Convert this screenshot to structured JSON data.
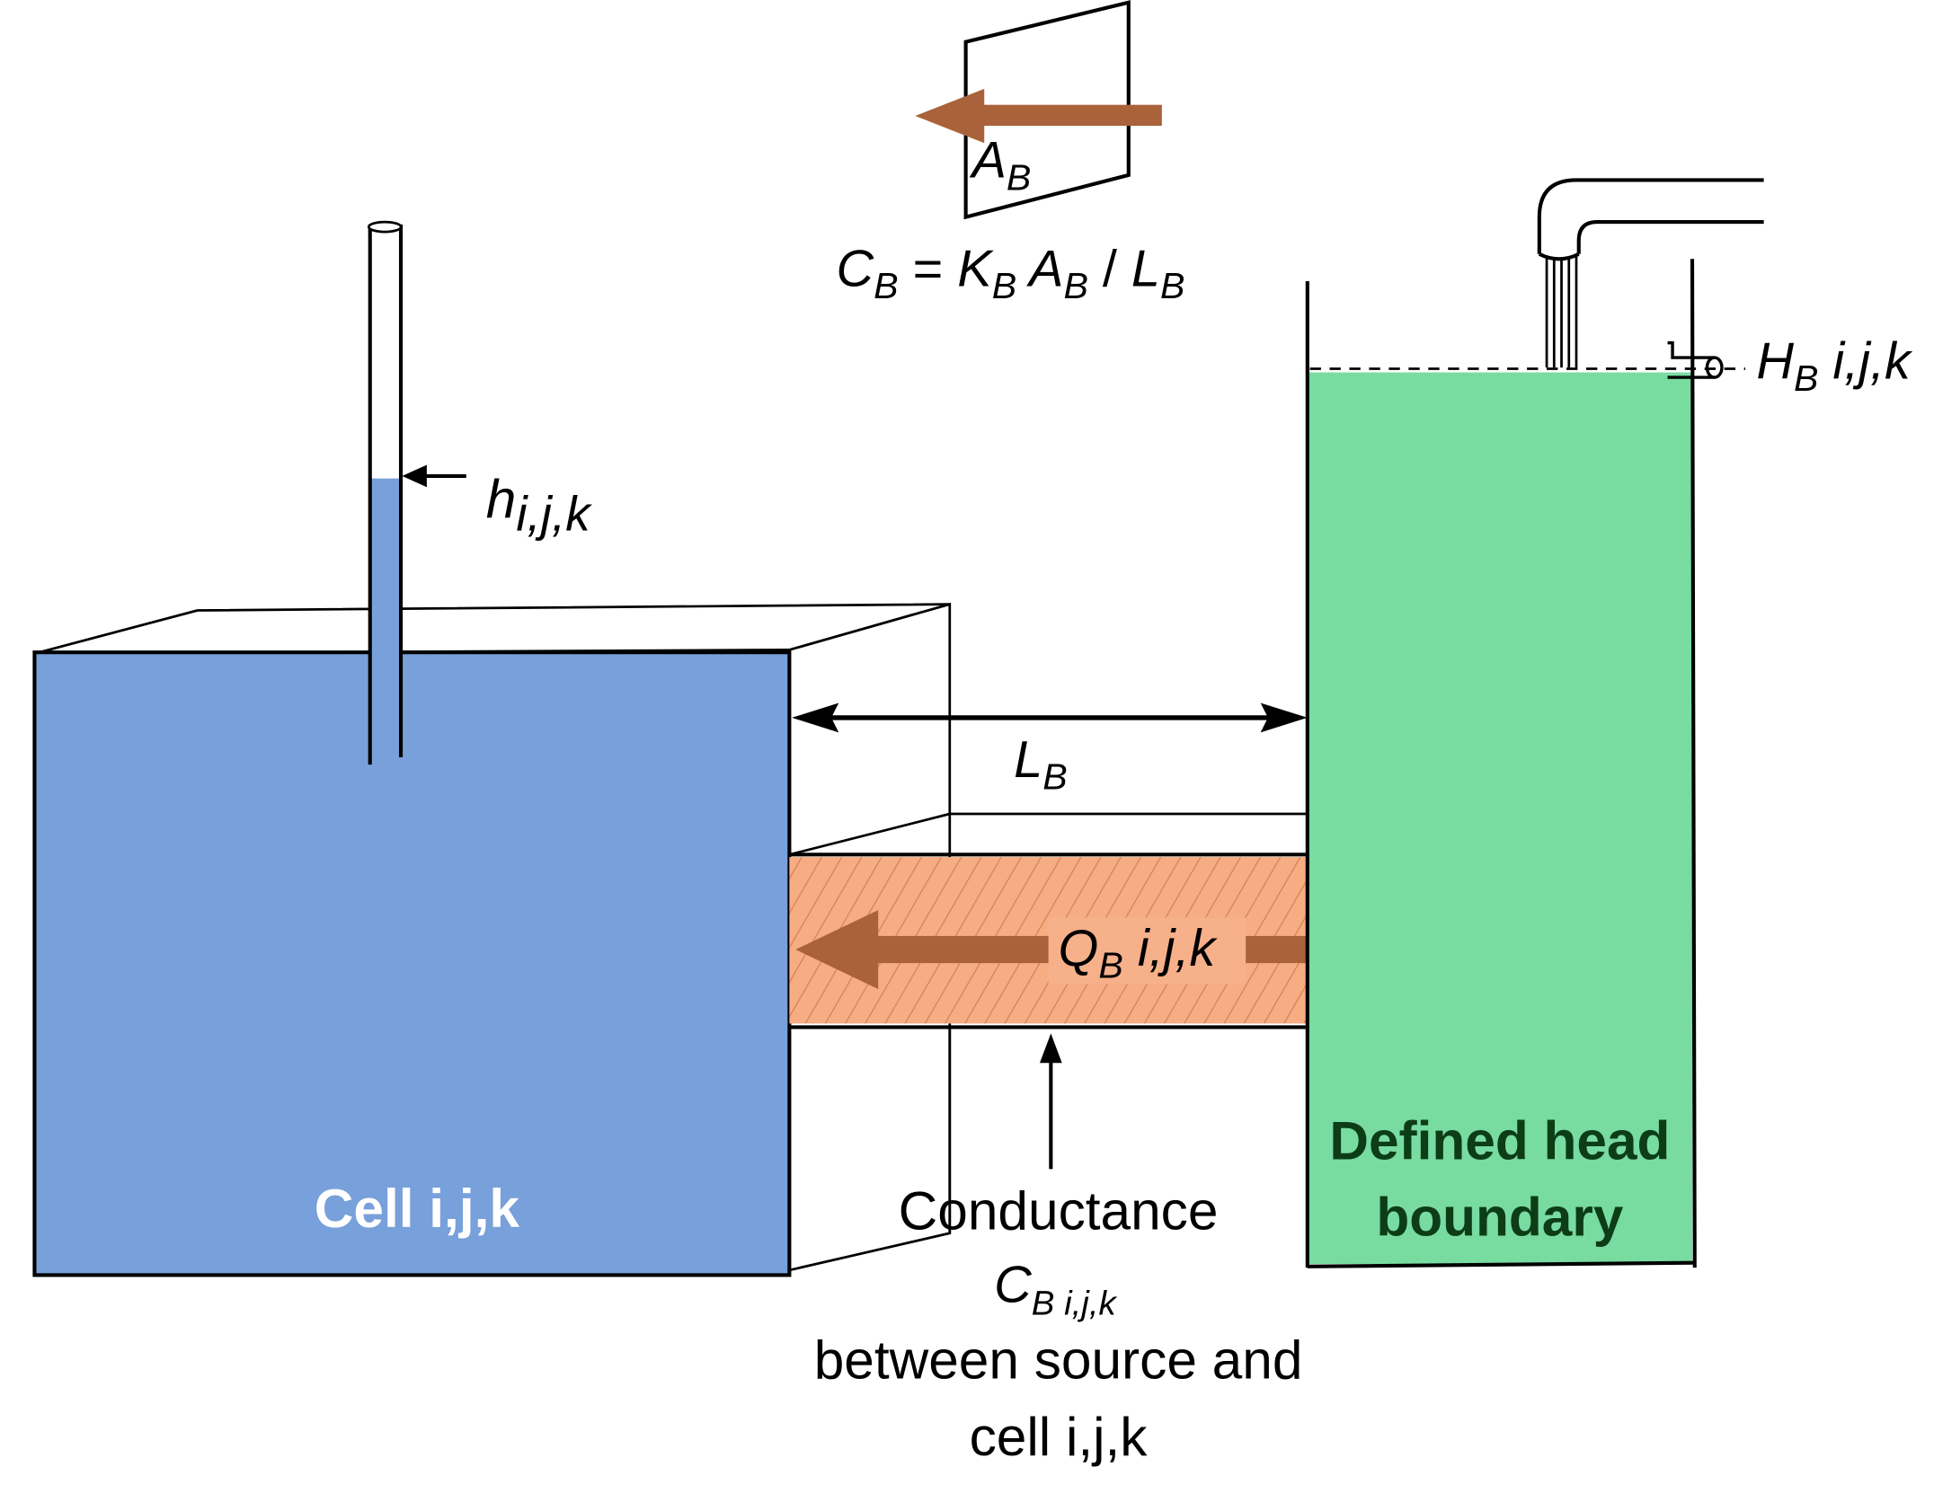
{
  "colors": {
    "cell_fill": "#78a0da",
    "boundary_fill": "#78dba0",
    "conduit_fill": "#f6ad84",
    "flow_arrow": "#a9623a",
    "label_box": "#f6b08a",
    "boundary_text": "#0c3d16",
    "cell_text": "#ffffff"
  },
  "labels": {
    "area": {
      "main": "A",
      "sub": "B"
    },
    "conductance_formula": {
      "c": "C",
      "c_sub": "B",
      "eq": " = ",
      "k": "K",
      "k_sub": "B",
      "a": " A",
      "a_sub": "B",
      "slash": " / ",
      "l": "L",
      "l_sub": "B"
    },
    "boundary_head": {
      "main": "H",
      "sub": "B",
      "idx": " i,j,k"
    },
    "cell_head": {
      "main": "h",
      "sub": "i,j,k"
    },
    "length": {
      "main": "L",
      "sub": "B"
    },
    "flow": {
      "main": "Q",
      "sub": "B",
      "idx": " i,j,k"
    },
    "cell_name": "Cell i,j,k",
    "boundary_name_line1": "Defined head",
    "boundary_name_line2": "boundary",
    "conductance_caption": {
      "line1": "Conductance",
      "c": "C",
      "c_sub": "B i,j,k",
      "line3": "between source and",
      "line4": "cell i,j,k"
    }
  }
}
